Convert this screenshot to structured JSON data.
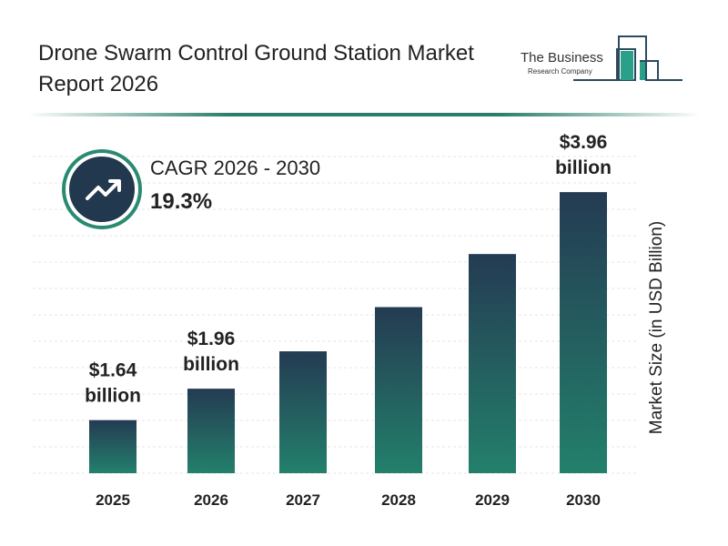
{
  "header": {
    "title": "Drone Swarm Control Ground Station Market Report 2026"
  },
  "logo": {
    "line1": "The Business",
    "line2": "Research Company"
  },
  "cagr": {
    "label": "CAGR 2026 - 2030",
    "value": "19.3%",
    "icon": "trending-up-icon"
  },
  "colors": {
    "bar_top": "#243b53",
    "bar_bottom": "#23806b",
    "accent": "#2a8a72"
  },
  "chart_data": {
    "type": "bar",
    "title": "",
    "xlabel": "",
    "ylabel": "Market Size (in USD Billion)",
    "categories": [
      "2025",
      "2026",
      "2027",
      "2028",
      "2029",
      "2030"
    ],
    "values": [
      1.64,
      1.96,
      2.34,
      2.79,
      3.33,
      3.96
    ],
    "data_labels": [
      [
        "$1.64",
        "billion"
      ],
      [
        "$1.96",
        "billion"
      ],
      null,
      null,
      null,
      [
        "$3.96",
        "billion"
      ]
    ],
    "grid": true
  }
}
